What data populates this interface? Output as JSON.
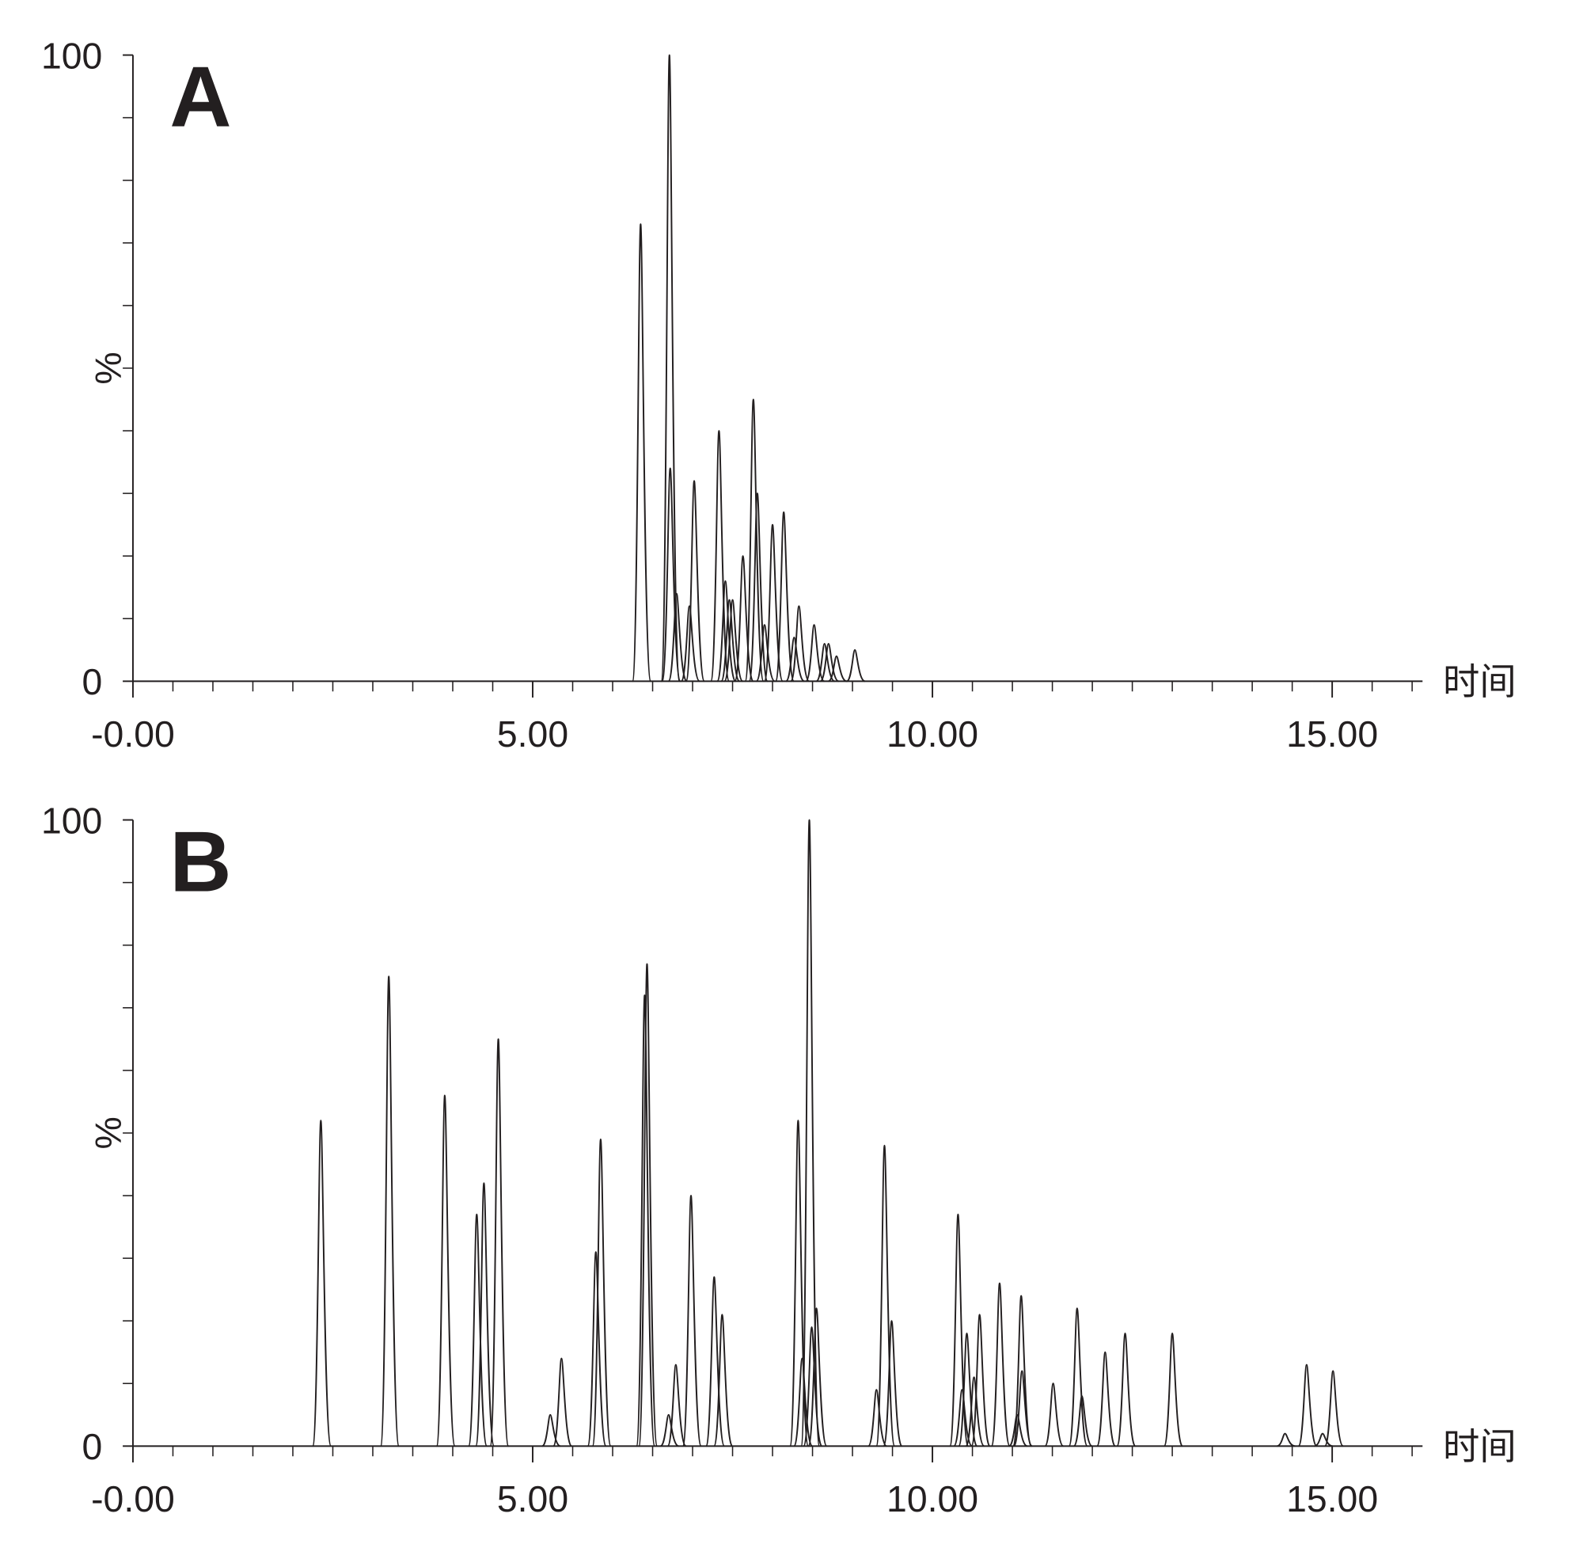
{
  "chart_data": [
    {
      "type": "chromatogram",
      "panel_label": "A",
      "xlabel": "时间",
      "ylabel": "%",
      "color": "#231f20",
      "x": [
        6.35,
        6.71,
        6.72,
        6.8,
        6.96,
        7.02,
        7.33,
        7.41,
        7.46,
        7.5,
        7.63,
        7.76,
        7.81,
        7.9,
        8.0,
        8.14,
        8.27,
        8.33,
        8.52,
        8.65,
        8.7,
        8.8,
        9.03
      ],
      "values": [
        73,
        100,
        34,
        14,
        12,
        32,
        40,
        16,
        13,
        13,
        20,
        45,
        30,
        9,
        25,
        27,
        7,
        12,
        9,
        6,
        6,
        4,
        5
      ],
      "xlim": [
        0,
        16.13
      ],
      "xticks": [
        {
          "value": 0,
          "label": "-0.00"
        },
        {
          "value": 5,
          "label": "5.00"
        },
        {
          "value": 10,
          "label": "10.00"
        },
        {
          "value": 15,
          "label": "15.00"
        }
      ],
      "xminorticks": [
        0.5,
        1,
        1.5,
        2,
        2.5,
        3,
        3.5,
        4,
        4.5,
        5.5,
        6,
        6.5,
        7,
        7.5,
        8,
        8.5,
        9,
        9.5,
        10.5,
        11,
        11.5,
        12,
        12.5,
        13,
        13.5,
        14,
        14.5,
        15.5,
        16
      ],
      "ylim": [
        0,
        100
      ],
      "yticks": [
        0,
        100
      ],
      "yminorticks": [
        10,
        20,
        30,
        40,
        50,
        60,
        70,
        80,
        90
      ]
    },
    {
      "type": "chromatogram",
      "panel_label": "B",
      "xlabel": "时间",
      "ylabel": "%",
      "color": "#231f20",
      "x": [
        2.35,
        3.2,
        3.9,
        4.3,
        4.39,
        4.57,
        5.22,
        5.36,
        5.79,
        5.85,
        6.4,
        6.43,
        6.7,
        6.79,
        6.98,
        7.27,
        7.37,
        8.32,
        8.37,
        8.46,
        8.49,
        8.55,
        9.3,
        9.4,
        9.49,
        10.32,
        10.37,
        10.43,
        10.52,
        10.59,
        10.84,
        11.06,
        11.11,
        11.12,
        11.51,
        11.81,
        11.87,
        12.16,
        12.41,
        13.0,
        14.41,
        14.68,
        14.88,
        15.01
      ],
      "values": [
        52,
        75,
        56,
        37,
        42,
        65,
        5,
        14,
        31,
        49,
        72,
        77,
        5,
        13,
        40,
        27,
        21,
        52,
        14,
        100,
        19,
        22,
        9,
        48,
        20,
        37,
        9,
        18,
        11,
        21,
        26,
        5,
        24,
        12,
        10,
        22,
        8,
        15,
        18,
        18,
        2,
        13,
        2,
        12
      ],
      "xlim": [
        0,
        16.13
      ],
      "xticks": [
        {
          "value": 0,
          "label": "-0.00"
        },
        {
          "value": 5,
          "label": "5.00"
        },
        {
          "value": 10,
          "label": "10.00"
        },
        {
          "value": 15,
          "label": "15.00"
        }
      ],
      "xminorticks": [
        0.5,
        1,
        1.5,
        2,
        2.5,
        3,
        3.5,
        4,
        4.5,
        5.5,
        6,
        6.5,
        7,
        7.5,
        8,
        8.5,
        9,
        9.5,
        10.5,
        11,
        11.5,
        12,
        12.5,
        13,
        13.5,
        14,
        14.5,
        15.5,
        16
      ],
      "ylim": [
        0,
        100
      ],
      "yticks": [
        0,
        100
      ],
      "yminorticks": [
        10,
        20,
        30,
        40,
        50,
        60,
        70,
        80,
        90
      ]
    }
  ]
}
